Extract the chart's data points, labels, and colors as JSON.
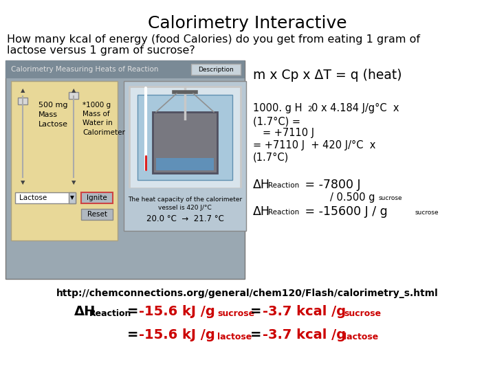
{
  "title": "Calorimetry Interactive",
  "subtitle_line1": "How many kcal of energy (food Calories) do you get from eating 1 gram of",
  "subtitle_line2": "lactose versus 1 gram of sucrose?",
  "title_fontsize": 18,
  "subtitle_fontsize": 11.5,
  "bg_color": "#ffffff",
  "red_color": "#cc0000",
  "black_color": "#000000",
  "gray_bg": "#9aa8b2",
  "flash_title_bg": "#7a8a96",
  "ctrl_panel_bg": "#e8d898",
  "cal_area_bg": "#b8c8d4",
  "inner_vessel_bg": "#90b8cc",
  "bomb_bg": "#787880",
  "info_box_bg": "#d8dce0",
  "url": "http://chemconnections.org/general/chem120/Flash/calorimetry_s.html"
}
